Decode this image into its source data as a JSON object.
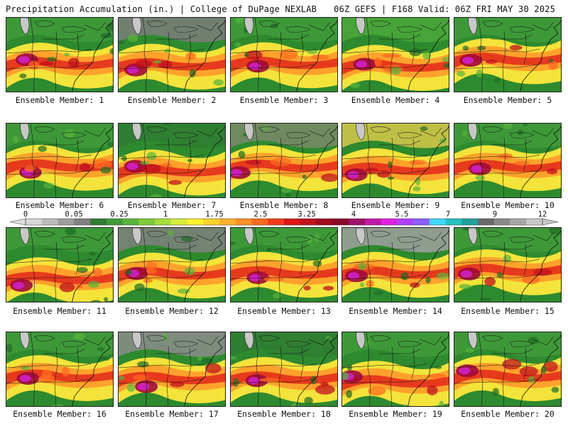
{
  "header": {
    "left_title": "Precipitation Accumulation (in.) | College of DuPage NEXLAB",
    "right_title": "06Z GEFS | F168 Valid: 06Z FRI MAY 30 2025"
  },
  "colorbar": {
    "labels": [
      "0",
      "0.05",
      "0.25",
      "1",
      "1.75",
      "2.5",
      "3.25",
      "4",
      "5.5",
      "7",
      "9",
      "12"
    ],
    "colors": [
      "#d8d8d8",
      "#bcbcbc",
      "#9e9e9e",
      "#808080",
      "#2e7d32",
      "#3f9b3a",
      "#58b43b",
      "#7ccb3a",
      "#a6dc3a",
      "#d8ec3a",
      "#fff22a",
      "#ffd42a",
      "#ffb030",
      "#ff9028",
      "#ff6a20",
      "#f53a1a",
      "#de1616",
      "#c0101c",
      "#a00a1e",
      "#8a0a2a",
      "#a0106a",
      "#c018a8",
      "#e020e0",
      "#b040ff",
      "#8a60ff",
      "#40d8ff",
      "#28c0c0",
      "#20a0a0",
      "#6a6a6a",
      "#8a8a8a",
      "#a8a8a8",
      "#c8c8c8"
    ]
  },
  "panels": [
    {
      "caption": "Ensemble Member: 1"
    },
    {
      "caption": "Ensemble Member: 2"
    },
    {
      "caption": "Ensemble Member: 3"
    },
    {
      "caption": "Ensemble Member: 4"
    },
    {
      "caption": "Ensemble Member: 5"
    },
    {
      "caption": "Ensemble Member: 6"
    },
    {
      "caption": "Ensemble Member: 7"
    },
    {
      "caption": "Ensemble Member: 8"
    },
    {
      "caption": "Ensemble Member: 9"
    },
    {
      "caption": "Ensemble Member: 10"
    },
    {
      "caption": "Ensemble Member: 11"
    },
    {
      "caption": "Ensemble Member: 12"
    },
    {
      "caption": "Ensemble Member: 13"
    },
    {
      "caption": "Ensemble Member: 14"
    },
    {
      "caption": "Ensemble Member: 15"
    },
    {
      "caption": "Ensemble Member: 16"
    },
    {
      "caption": "Ensemble Member: 17"
    },
    {
      "caption": "Ensemble Member: 18"
    },
    {
      "caption": "Ensemble Member: 19"
    },
    {
      "caption": "Ensemble Member: 20"
    }
  ]
}
